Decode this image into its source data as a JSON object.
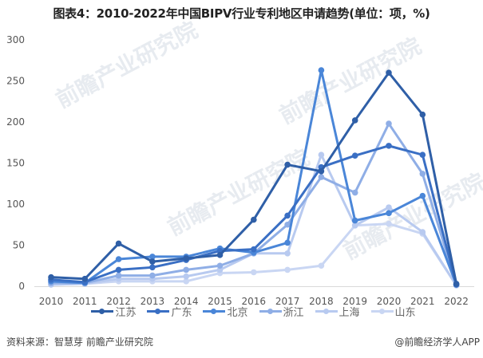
{
  "title": "图表4：2010-2022年中国BIPV行业专利地区申请趋势(单位：项，%)",
  "footer": {
    "source": "资料来源：智慧芽 前瞻产业研究院",
    "credit": "@前瞻经济学人APP"
  },
  "watermark": "前瞻产业研究院",
  "chart_data": {
    "type": "line",
    "title": "图表4：2010-2022年中国BIPV行业专利地区申请趋势(单位：项，%)",
    "xlabel": "",
    "ylabel": "",
    "categories": [
      "2010",
      "2011",
      "2012",
      "2013",
      "2014",
      "2015",
      "2016",
      "2017",
      "2018",
      "2019",
      "2020",
      "2021",
      "2022"
    ],
    "ylim": [
      0,
      300
    ],
    "yticks": [
      0,
      50,
      100,
      150,
      200,
      250,
      300
    ],
    "grid": false,
    "legend_position": "bottom",
    "series": [
      {
        "name": "江苏",
        "color": "#2f5fa7",
        "values": [
          11,
          9,
          52,
          30,
          34,
          38,
          81,
          148,
          140,
          202,
          260,
          209,
          3
        ]
      },
      {
        "name": "广东",
        "color": "#3a6fc4",
        "values": [
          8,
          5,
          20,
          23,
          32,
          43,
          45,
          86,
          145,
          159,
          171,
          160,
          2
        ]
      },
      {
        "name": "北京",
        "color": "#4a86d8",
        "values": [
          6,
          4,
          33,
          36,
          36,
          46,
          41,
          53,
          263,
          80,
          89,
          110,
          2
        ]
      },
      {
        "name": "浙江",
        "color": "#8faee6",
        "values": [
          4,
          4,
          13,
          13,
          20,
          25,
          40,
          75,
          133,
          114,
          198,
          137,
          2
        ]
      },
      {
        "name": "上海",
        "color": "#b8caf0",
        "values": [
          2,
          3,
          9,
          9,
          12,
          20,
          40,
          40,
          160,
          74,
          96,
          66,
          1
        ]
      },
      {
        "name": "山东",
        "color": "#c9d6f3",
        "values": [
          2,
          3,
          6,
          6,
          6,
          16,
          17,
          20,
          25,
          74,
          76,
          64,
          1
        ]
      }
    ]
  }
}
